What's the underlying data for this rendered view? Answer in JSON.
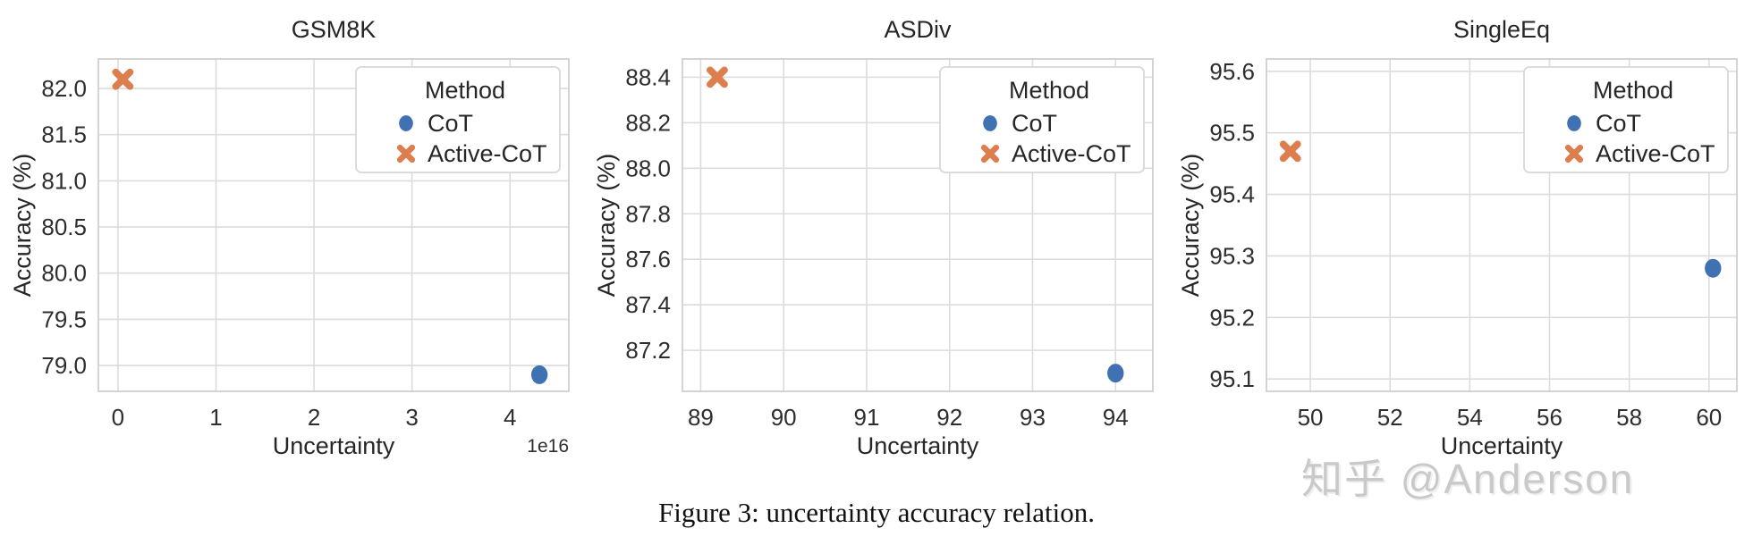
{
  "figure": {
    "caption": "Figure 3: uncertainty accuracy relation.",
    "watermark": "知乎 @Anderson"
  },
  "colors": {
    "cot_marker": "#4071b2",
    "active_cot_marker": "#dd7e4e",
    "gridline": "#dcdcdc",
    "axes_border": "#cfcfcf",
    "text": "#262626",
    "watermark": "#c9c9c9",
    "legend_border": "#d8d8d8"
  },
  "legend": {
    "title": "Method",
    "entries": [
      {
        "label": "CoT",
        "marker": "circle",
        "color": "#4071b2"
      },
      {
        "label": "Active-CoT",
        "marker": "X",
        "color": "#dd7e4e"
      }
    ]
  },
  "chart_data": [
    {
      "type": "scatter",
      "title": "GSM8K",
      "xlabel": "Uncertainty",
      "ylabel": "Accuracy (%)",
      "x_offset_label": "1e16",
      "xlim": [
        -0.2,
        4.6
      ],
      "ylim": [
        78.72,
        82.32
      ],
      "xticks": [
        0,
        1,
        2,
        3,
        4
      ],
      "xtick_labels": [
        "0",
        "1",
        "2",
        "3",
        "4"
      ],
      "yticks": [
        79.0,
        79.5,
        80.0,
        80.5,
        81.0,
        81.5,
        82.0
      ],
      "ytick_labels": [
        "79.0",
        "79.5",
        "80.0",
        "80.5",
        "81.0",
        "81.5",
        "82.0"
      ],
      "grid": true,
      "legend_position": "upper right",
      "series": [
        {
          "name": "CoT",
          "marker": "circle",
          "color": "#4071b2",
          "points": [
            {
              "x": 4.3,
              "y": 78.9
            }
          ]
        },
        {
          "name": "Active-CoT",
          "marker": "X",
          "color": "#dd7e4e",
          "points": [
            {
              "x": 0.05,
              "y": 82.1
            }
          ]
        }
      ]
    },
    {
      "type": "scatter",
      "title": "ASDiv",
      "xlabel": "Uncertainty",
      "ylabel": "Accuracy (%)",
      "x_offset_label": "",
      "xlim": [
        88.78,
        94.45
      ],
      "ylim": [
        87.02,
        88.48
      ],
      "xticks": [
        89,
        90,
        91,
        92,
        93,
        94
      ],
      "xtick_labels": [
        "89",
        "90",
        "91",
        "92",
        "93",
        "94"
      ],
      "yticks": [
        87.2,
        87.4,
        87.6,
        87.8,
        88.0,
        88.2,
        88.4
      ],
      "ytick_labels": [
        "87.2",
        "87.4",
        "87.6",
        "87.8",
        "88.0",
        "88.2",
        "88.4"
      ],
      "grid": true,
      "legend_position": "upper right",
      "series": [
        {
          "name": "CoT",
          "marker": "circle",
          "color": "#4071b2",
          "points": [
            {
              "x": 94.0,
              "y": 87.1
            }
          ]
        },
        {
          "name": "Active-CoT",
          "marker": "X",
          "color": "#dd7e4e",
          "points": [
            {
              "x": 89.2,
              "y": 88.4
            }
          ]
        }
      ]
    },
    {
      "type": "scatter",
      "title": "SingleEq",
      "xlabel": "Uncertainty",
      "ylabel": "Accuracy (%)",
      "x_offset_label": "",
      "xlim": [
        48.9,
        60.7
      ],
      "ylim": [
        95.08,
        95.62
      ],
      "xticks": [
        50,
        52,
        54,
        56,
        58,
        60
      ],
      "xtick_labels": [
        "50",
        "52",
        "54",
        "56",
        "58",
        "60"
      ],
      "yticks": [
        95.1,
        95.2,
        95.3,
        95.4,
        95.5,
        95.6
      ],
      "ytick_labels": [
        "95.1",
        "95.2",
        "95.3",
        "95.4",
        "95.5",
        "95.6"
      ],
      "grid": true,
      "legend_position": "upper right",
      "series": [
        {
          "name": "CoT",
          "marker": "circle",
          "color": "#4071b2",
          "points": [
            {
              "x": 60.1,
              "y": 95.28
            }
          ]
        },
        {
          "name": "Active-CoT",
          "marker": "X",
          "color": "#dd7e4e",
          "points": [
            {
              "x": 49.5,
              "y": 95.47
            }
          ]
        }
      ]
    }
  ]
}
